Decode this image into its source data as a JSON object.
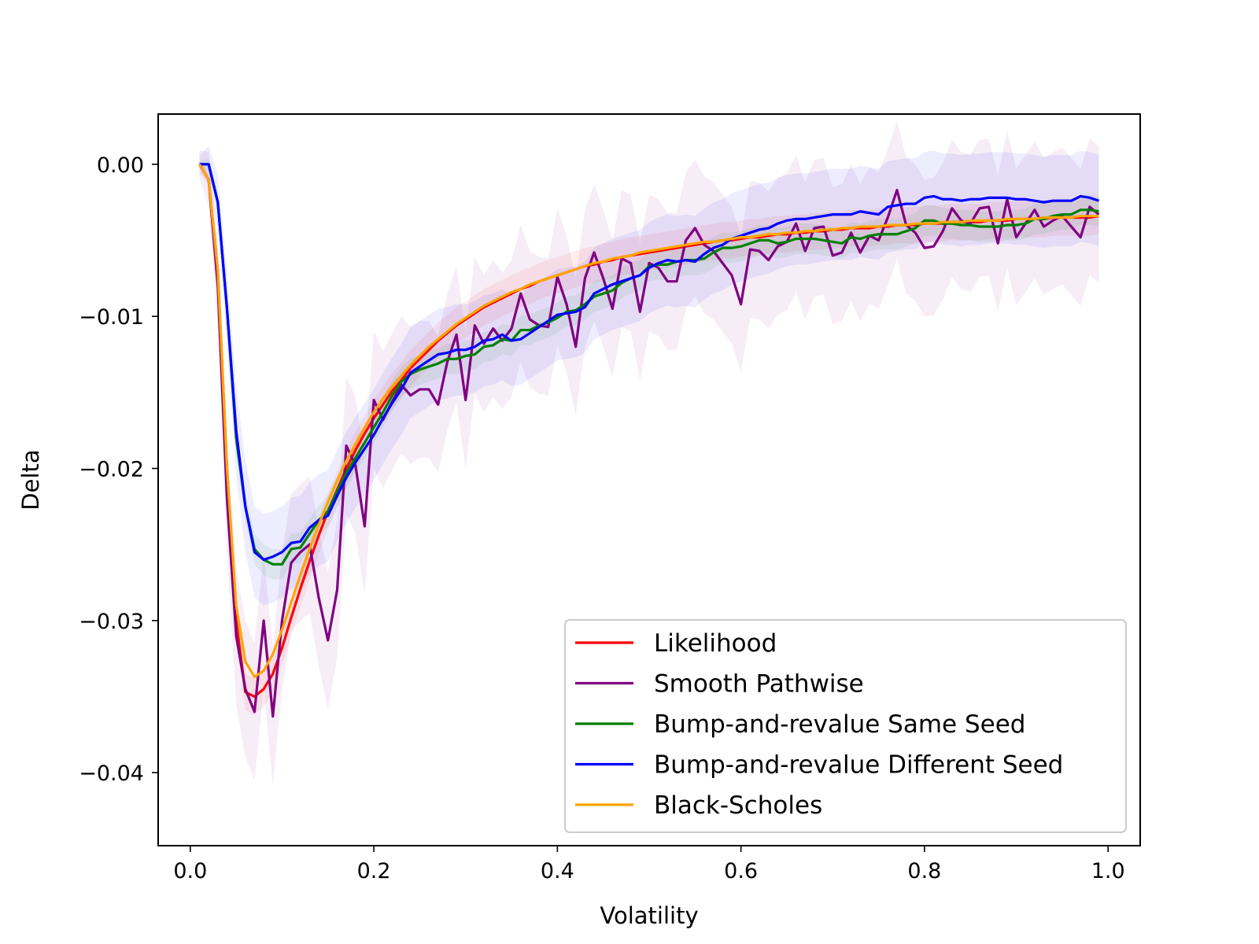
{
  "chart_data": {
    "type": "line",
    "title": "",
    "xlabel": "Volatility",
    "ylabel": "Delta",
    "xlim": [
      -0.035,
      1.035
    ],
    "ylim": [
      -0.0448,
      0.0033
    ],
    "xticks": [
      0.0,
      0.2,
      0.4,
      0.6,
      0.8,
      1.0
    ],
    "xtick_labels": [
      "0.0",
      "0.2",
      "0.4",
      "0.6",
      "0.8",
      "1.0"
    ],
    "yticks": [
      0.0,
      -0.01,
      -0.02,
      -0.03,
      -0.04
    ],
    "ytick_labels": [
      "0.00",
      "−0.01",
      "−0.02",
      "−0.03",
      "−0.04"
    ],
    "grid": false,
    "legend_position": "lower-right",
    "x": [
      0.01,
      0.02,
      0.03,
      0.04,
      0.05,
      0.06,
      0.07,
      0.08,
      0.09,
      0.1,
      0.11,
      0.12,
      0.13,
      0.14,
      0.15,
      0.16,
      0.17,
      0.18,
      0.19,
      0.2,
      0.21,
      0.22,
      0.23,
      0.24,
      0.25,
      0.26,
      0.27,
      0.28,
      0.29,
      0.3,
      0.31,
      0.32,
      0.33,
      0.34,
      0.35,
      0.36,
      0.37,
      0.38,
      0.39,
      0.4,
      0.41,
      0.42,
      0.43,
      0.44,
      0.45,
      0.46,
      0.47,
      0.48,
      0.49,
      0.5,
      0.51,
      0.52,
      0.53,
      0.54,
      0.55,
      0.56,
      0.57,
      0.58,
      0.59,
      0.6,
      0.61,
      0.62,
      0.63,
      0.64,
      0.65,
      0.66,
      0.67,
      0.68,
      0.69,
      0.7,
      0.71,
      0.72,
      0.73,
      0.74,
      0.75,
      0.76,
      0.77,
      0.78,
      0.79,
      0.8,
      0.81,
      0.82,
      0.83,
      0.84,
      0.85,
      0.86,
      0.87,
      0.88,
      0.89,
      0.9,
      0.91,
      0.92,
      0.93,
      0.94,
      0.95,
      0.96,
      0.97,
      0.98,
      0.99
    ],
    "series": [
      {
        "name": "Likelihood",
        "color": "#ff0000",
        "values": [
          0.0,
          -0.001,
          -0.007,
          -0.02,
          -0.03,
          -0.0347,
          -0.035,
          -0.0345,
          -0.0335,
          -0.0318,
          -0.0298,
          -0.0279,
          -0.0261,
          -0.0244,
          -0.0228,
          -0.0214,
          -0.02,
          -0.0188,
          -0.0177,
          -0.0167,
          -0.0158,
          -0.0149,
          -0.0142,
          -0.0134,
          -0.0128,
          -0.0122,
          -0.0116,
          -0.0111,
          -0.0106,
          -0.0102,
          -0.0098,
          -0.0094,
          -0.0091,
          -0.0088,
          -0.0085,
          -0.0082,
          -0.008,
          -0.0077,
          -0.0075,
          -0.0073,
          -0.0071,
          -0.0069,
          -0.0067,
          -0.0066,
          -0.0064,
          -0.0063,
          -0.0061,
          -0.006,
          -0.0059,
          -0.0058,
          -0.0057,
          -0.0056,
          -0.0055,
          -0.0054,
          -0.0053,
          -0.0052,
          -0.0051,
          -0.005,
          -0.005,
          -0.0049,
          -0.0048,
          -0.0048,
          -0.0047,
          -0.0046,
          -0.0046,
          -0.0045,
          -0.0045,
          -0.0044,
          -0.0044,
          -0.0043,
          -0.0043,
          -0.0042,
          -0.0042,
          -0.0042,
          -0.0041,
          -0.0041,
          -0.004,
          -0.004,
          -0.004,
          -0.0039,
          -0.0039,
          -0.0039,
          -0.0038,
          -0.0038,
          -0.0038,
          -0.0038,
          -0.0037,
          -0.0037,
          -0.0037,
          -0.0036,
          -0.0036,
          -0.0036,
          -0.0036,
          -0.0035,
          -0.0035,
          -0.0035,
          -0.0035,
          -0.0035,
          -0.0034
        ],
        "band": 0.0012
      },
      {
        "name": "Smooth Pathwise",
        "color": "#800080",
        "values": [
          0.0,
          -0.001,
          -0.008,
          -0.022,
          -0.031,
          -0.0345,
          -0.036,
          -0.03,
          -0.0363,
          -0.03,
          -0.0262,
          -0.0255,
          -0.025,
          -0.0285,
          -0.0313,
          -0.028,
          -0.0185,
          -0.0198,
          -0.0238,
          -0.0155,
          -0.0168,
          -0.0156,
          -0.0145,
          -0.0152,
          -0.0148,
          -0.0148,
          -0.0158,
          -0.013,
          -0.0112,
          -0.0155,
          -0.0106,
          -0.0118,
          -0.0108,
          -0.0116,
          -0.0108,
          -0.0085,
          -0.0102,
          -0.0106,
          -0.0107,
          -0.0074,
          -0.0092,
          -0.012,
          -0.0075,
          -0.0058,
          -0.0075,
          -0.0095,
          -0.0062,
          -0.0065,
          -0.0097,
          -0.0065,
          -0.0068,
          -0.0077,
          -0.0077,
          -0.005,
          -0.0042,
          -0.0053,
          -0.0057,
          -0.0065,
          -0.0073,
          -0.0092,
          -0.0056,
          -0.0057,
          -0.0063,
          -0.0054,
          -0.0051,
          -0.0039,
          -0.0057,
          -0.0042,
          -0.0041,
          -0.006,
          -0.0058,
          -0.0045,
          -0.0058,
          -0.0047,
          -0.005,
          -0.0035,
          -0.0017,
          -0.004,
          -0.0045,
          -0.0055,
          -0.0054,
          -0.0044,
          -0.0029,
          -0.0037,
          -0.0039,
          -0.0029,
          -0.0028,
          -0.0052,
          -0.0023,
          -0.0048,
          -0.0039,
          -0.003,
          -0.0041,
          -0.0037,
          -0.0034,
          -0.0041,
          -0.0048,
          -0.0028,
          -0.0033
        ],
        "band": 0.0045
      },
      {
        "name": "Bump-and-revalue Same Seed",
        "color": "#008000",
        "values": [
          0.0,
          0.0,
          -0.0025,
          -0.0095,
          -0.018,
          -0.0225,
          -0.0253,
          -0.026,
          -0.0263,
          -0.0263,
          -0.0253,
          -0.0252,
          -0.0243,
          -0.0234,
          -0.0228,
          -0.0215,
          -0.0203,
          -0.0193,
          -0.0183,
          -0.0173,
          -0.0163,
          -0.0152,
          -0.0143,
          -0.0138,
          -0.0135,
          -0.0133,
          -0.0131,
          -0.0128,
          -0.0128,
          -0.0126,
          -0.0125,
          -0.012,
          -0.0119,
          -0.0115,
          -0.0116,
          -0.0109,
          -0.0109,
          -0.0106,
          -0.0104,
          -0.0101,
          -0.0097,
          -0.0096,
          -0.0092,
          -0.0087,
          -0.0085,
          -0.0083,
          -0.0078,
          -0.0075,
          -0.0073,
          -0.0067,
          -0.0066,
          -0.0066,
          -0.0064,
          -0.0063,
          -0.0063,
          -0.0062,
          -0.0058,
          -0.0055,
          -0.0055,
          -0.0054,
          -0.0052,
          -0.005,
          -0.005,
          -0.0052,
          -0.0051,
          -0.0049,
          -0.0049,
          -0.0049,
          -0.005,
          -0.0051,
          -0.0052,
          -0.0048,
          -0.0049,
          -0.0047,
          -0.0046,
          -0.0046,
          -0.0046,
          -0.0044,
          -0.0042,
          -0.0037,
          -0.0037,
          -0.0039,
          -0.0039,
          -0.004,
          -0.004,
          -0.0041,
          -0.0041,
          -0.0041,
          -0.004,
          -0.004,
          -0.0039,
          -0.0036,
          -0.0036,
          -0.0034,
          -0.0033,
          -0.0033,
          -0.003,
          -0.003,
          -0.0031
        ],
        "band": 0.001
      },
      {
        "name": "Bump-and-revalue Different Seed",
        "color": "#0000ff",
        "values": [
          0.0,
          0.0,
          -0.0025,
          -0.0095,
          -0.0175,
          -0.0225,
          -0.0255,
          -0.026,
          -0.0258,
          -0.0255,
          -0.0249,
          -0.0248,
          -0.0239,
          -0.0234,
          -0.0231,
          -0.0218,
          -0.0206,
          -0.0196,
          -0.0187,
          -0.0178,
          -0.0167,
          -0.0157,
          -0.0148,
          -0.0137,
          -0.0133,
          -0.0129,
          -0.0125,
          -0.0124,
          -0.0122,
          -0.0122,
          -0.012,
          -0.0116,
          -0.0115,
          -0.0112,
          -0.0116,
          -0.0115,
          -0.0111,
          -0.0107,
          -0.0103,
          -0.0099,
          -0.0098,
          -0.0097,
          -0.0094,
          -0.0085,
          -0.0082,
          -0.0079,
          -0.0077,
          -0.0075,
          -0.0073,
          -0.0068,
          -0.0065,
          -0.0063,
          -0.0064,
          -0.0063,
          -0.0064,
          -0.0059,
          -0.0055,
          -0.0053,
          -0.0049,
          -0.0047,
          -0.0045,
          -0.0043,
          -0.0042,
          -0.0039,
          -0.0037,
          -0.0036,
          -0.0036,
          -0.0035,
          -0.0034,
          -0.0033,
          -0.0033,
          -0.0033,
          -0.0031,
          -0.0032,
          -0.0033,
          -0.0028,
          -0.0027,
          -0.0026,
          -0.0026,
          -0.0022,
          -0.0021,
          -0.0023,
          -0.0023,
          -0.0024,
          -0.0023,
          -0.0023,
          -0.0022,
          -0.0022,
          -0.0022,
          -0.0023,
          -0.0023,
          -0.0024,
          -0.0025,
          -0.0024,
          -0.0024,
          -0.0024,
          -0.0021,
          -0.0022,
          -0.0024
        ],
        "band": 0.003
      },
      {
        "name": "Black-Scholes",
        "color": "#ffa500",
        "values": [
          0.0,
          -0.001,
          -0.007,
          -0.02,
          -0.029,
          -0.0327,
          -0.0337,
          -0.0333,
          -0.0322,
          -0.0306,
          -0.0288,
          -0.027,
          -0.0253,
          -0.0237,
          -0.0222,
          -0.0208,
          -0.0195,
          -0.0184,
          -0.0173,
          -0.0163,
          -0.0154,
          -0.0146,
          -0.0139,
          -0.0132,
          -0.0126,
          -0.012,
          -0.0115,
          -0.011,
          -0.0105,
          -0.0101,
          -0.0097,
          -0.0093,
          -0.009,
          -0.0087,
          -0.0084,
          -0.0082,
          -0.0079,
          -0.0077,
          -0.0075,
          -0.0073,
          -0.0071,
          -0.0069,
          -0.0067,
          -0.0065,
          -0.0064,
          -0.0062,
          -0.0061,
          -0.006,
          -0.0058,
          -0.0057,
          -0.0056,
          -0.0055,
          -0.0054,
          -0.0053,
          -0.0052,
          -0.0051,
          -0.0051,
          -0.005,
          -0.0049,
          -0.0048,
          -0.0048,
          -0.0047,
          -0.0046,
          -0.0046,
          -0.0045,
          -0.0045,
          -0.0044,
          -0.0044,
          -0.0043,
          -0.0043,
          -0.0042,
          -0.0042,
          -0.0041,
          -0.0041,
          -0.0041,
          -0.004,
          -0.004,
          -0.004,
          -0.0039,
          -0.0039,
          -0.0039,
          -0.0038,
          -0.0038,
          -0.0038,
          -0.0037,
          -0.0037,
          -0.0037,
          -0.0037,
          -0.0036,
          -0.0036,
          -0.0036,
          -0.0036,
          -0.0035,
          -0.0035,
          -0.0035,
          -0.0035,
          -0.0034,
          -0.0034,
          -0.0034
        ]
      }
    ]
  }
}
